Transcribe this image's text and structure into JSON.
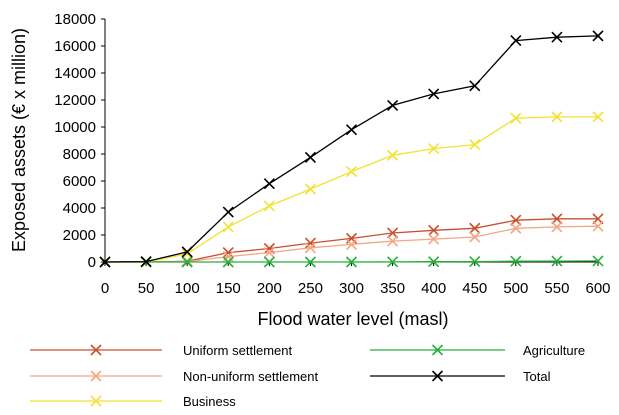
{
  "chart_data": {
    "type": "line",
    "title": "",
    "xlabel": "Flood water level (masl)",
    "ylabel": "Exposed assets (€ x million)",
    "x": [
      0,
      50,
      100,
      150,
      200,
      250,
      300,
      350,
      400,
      450,
      500,
      550,
      600
    ],
    "xlim": [
      0,
      600
    ],
    "ylim": [
      0,
      18000
    ],
    "x_ticks": [
      "0",
      "50",
      "100",
      "150",
      "200",
      "250",
      "300",
      "350",
      "400",
      "450",
      "500",
      "550",
      "600"
    ],
    "y_ticks": [
      "0",
      "2000",
      "4000",
      "6000",
      "8000",
      "10000",
      "12000",
      "14000",
      "16000",
      "18000"
    ],
    "grid": false,
    "legend_position": "bottom",
    "marker": "x",
    "series": [
      {
        "name": "Uniform settlement",
        "color": "#c8502e",
        "values": [
          0,
          0,
          50,
          700,
          1000,
          1400,
          1750,
          2150,
          2350,
          2500,
          3100,
          3200,
          3200
        ]
      },
      {
        "name": "Non-uniform settlement",
        "color": "#f4a582",
        "values": [
          0,
          0,
          30,
          400,
          700,
          1050,
          1300,
          1550,
          1700,
          1850,
          2500,
          2600,
          2650
        ]
      },
      {
        "name": "Business",
        "color": "#f2e233",
        "values": [
          0,
          0,
          600,
          2600,
          4150,
          5400,
          6700,
          7900,
          8400,
          8700,
          10650,
          10750,
          10750
        ]
      },
      {
        "name": "Agriculture",
        "color": "#27ae3c",
        "values": [
          0,
          0,
          0,
          0,
          0,
          0,
          0,
          10,
          20,
          30,
          60,
          70,
          80
        ]
      },
      {
        "name": "Total",
        "color": "#000000",
        "values": [
          0,
          30,
          750,
          3700,
          5800,
          7750,
          9800,
          11600,
          12450,
          13050,
          16400,
          16650,
          16750
        ]
      }
    ]
  }
}
